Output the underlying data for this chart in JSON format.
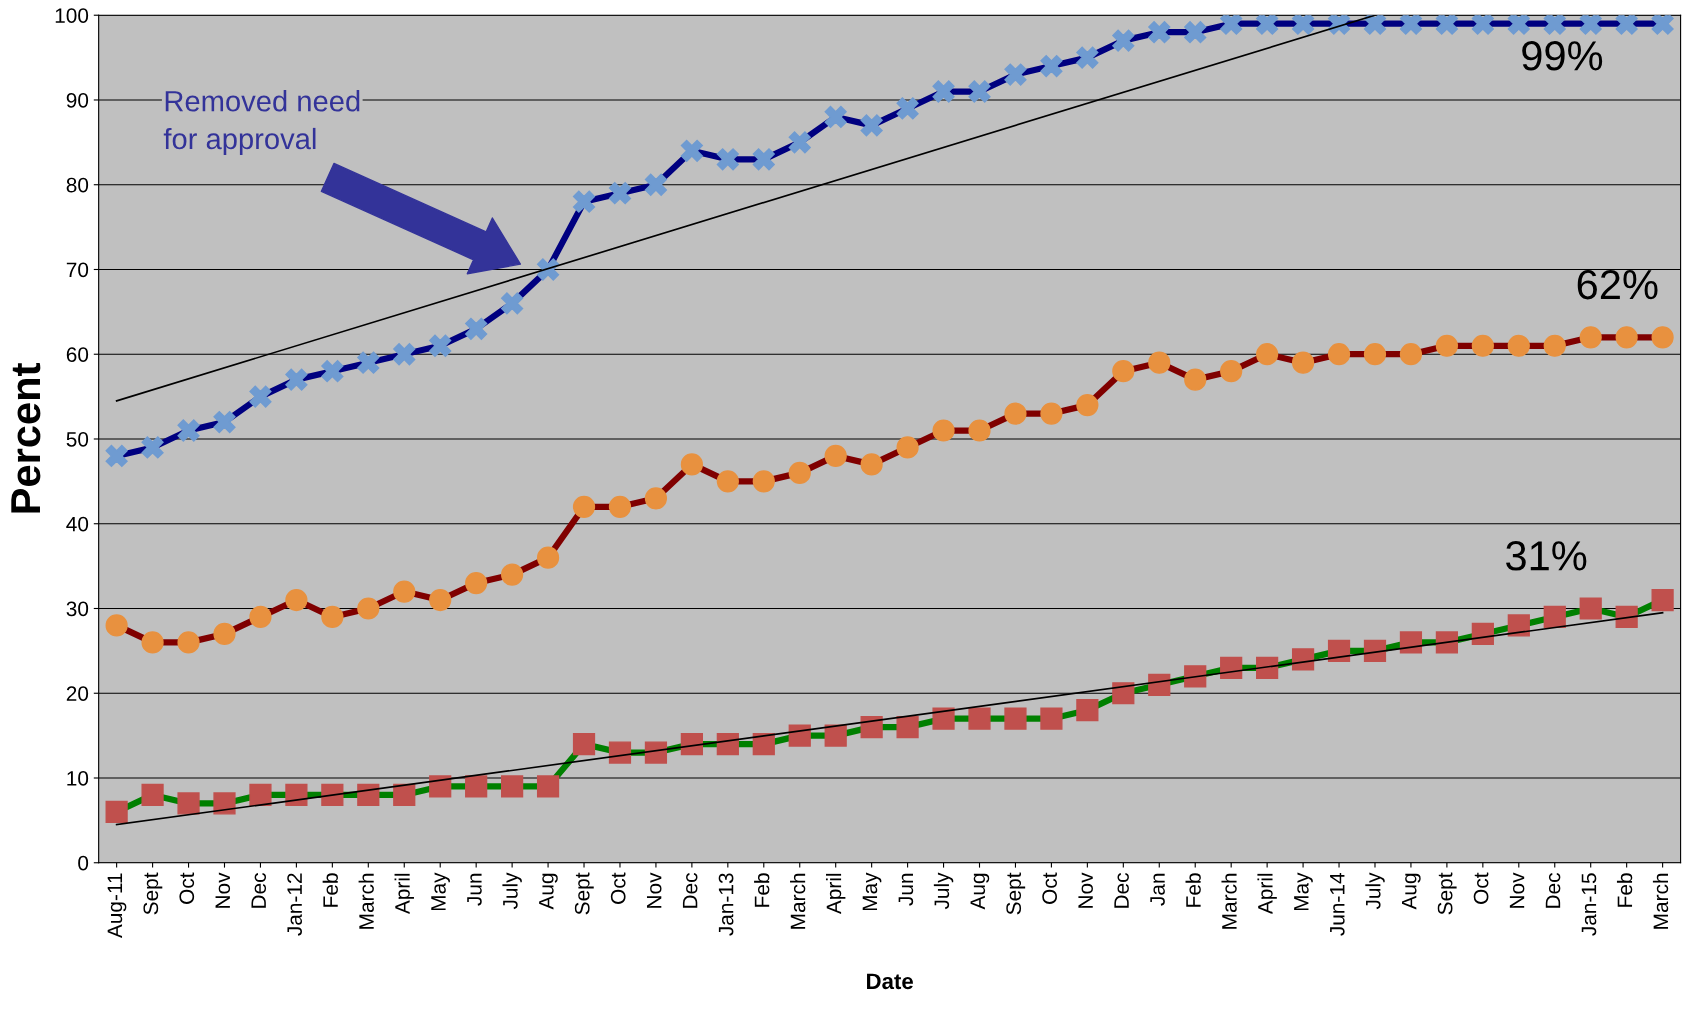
{
  "chart_data": {
    "type": "line",
    "xlabel": "Date",
    "ylabel": "Percent",
    "categories": [
      "Aug-11",
      "Sept",
      "Oct",
      "Nov",
      "Dec",
      "Jan-12",
      "Feb",
      "March",
      "April",
      "May",
      "Jun",
      "July",
      "Aug",
      "Sept",
      "Oct",
      "Nov",
      "Dec",
      "Jan-13",
      "Feb",
      "March",
      "April",
      "May",
      "Jun",
      "July",
      "Aug",
      "Sept",
      "Oct",
      "Nov",
      "Dec",
      "Jan",
      "Feb",
      "March",
      "April",
      "May",
      "Jun-14",
      "July",
      "Aug",
      "Sept",
      "Oct",
      "Nov",
      "Dec",
      "Jan-15",
      "Feb",
      "March"
    ],
    "series": [
      {
        "color": "#000080",
        "marker": "cross",
        "values": [
          48,
          49,
          51,
          52,
          55,
          57,
          58,
          59,
          60,
          61,
          63,
          66,
          70,
          78,
          79,
          80,
          84,
          83,
          83,
          85,
          88,
          87,
          89,
          91,
          91,
          93,
          94,
          95,
          97,
          98,
          98,
          99,
          99,
          99,
          99,
          99,
          99,
          99,
          99,
          99,
          99,
          99,
          99,
          99
        ]
      },
      {
        "color": "#800000",
        "marker": "circle",
        "values": [
          28,
          26,
          26,
          27,
          29,
          31,
          29,
          30,
          32,
          31,
          33,
          34,
          36,
          42,
          42,
          43,
          47,
          45,
          45,
          46,
          48,
          47,
          49,
          51,
          51,
          53,
          53,
          54,
          58,
          59,
          57,
          58,
          60,
          59,
          60,
          60,
          60,
          61,
          61,
          61,
          61,
          62,
          62,
          62
        ]
      },
      {
        "color": "#008000",
        "marker": "square",
        "values": [
          6,
          8,
          7,
          7,
          8,
          8,
          8,
          8,
          8,
          9,
          9,
          9,
          9,
          14,
          13,
          13,
          14,
          14,
          14,
          15,
          15,
          16,
          16,
          17,
          17,
          17,
          17,
          18,
          20,
          21,
          22,
          23,
          23,
          24,
          25,
          25,
          26,
          26,
          27,
          28,
          29,
          30,
          29,
          31
        ]
      },
      {
        "color": "#000000",
        "marker": "none",
        "values": [
          54.5,
          null,
          null,
          null,
          null,
          null,
          null,
          null,
          null,
          null,
          null,
          null,
          null,
          null,
          null,
          null,
          null,
          null,
          null,
          null,
          null,
          null,
          null,
          null,
          null,
          null,
          null,
          null,
          null,
          null,
          null,
          null,
          null,
          null,
          null,
          100,
          null,
          null,
          null,
          null,
          null,
          null,
          null,
          null
        ]
      },
      {
        "color": "#000000",
        "marker": "none",
        "values": [
          4.5,
          null,
          null,
          null,
          null,
          null,
          null,
          null,
          null,
          null,
          null,
          null,
          null,
          null,
          null,
          null,
          null,
          null,
          null,
          null,
          null,
          null,
          null,
          null,
          null,
          null,
          null,
          null,
          null,
          null,
          null,
          null,
          null,
          null,
          null,
          null,
          null,
          null,
          null,
          null,
          null,
          null,
          null,
          29.5
        ]
      }
    ],
    "ylim": [
      0,
      100
    ],
    "yticks": [
      0,
      10,
      20,
      30,
      40,
      50,
      60,
      70,
      80,
      90,
      100
    ],
    "grid": "y",
    "legend": false,
    "annotations": [
      "Removed need\nfor approval",
      "99%",
      "62%",
      "31%"
    ]
  }
}
